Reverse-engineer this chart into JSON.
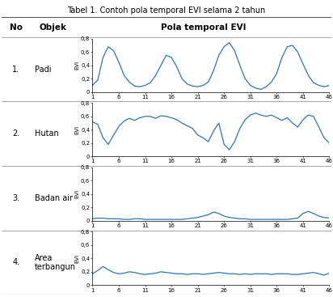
{
  "title": "Tabel 1. Contoh pola temporal EVI selama 2 tahun",
  "col_headers": [
    "No",
    "Objek",
    "Pola temporal EVI"
  ],
  "rows": [
    {
      "no": "1.",
      "objek": "Padi"
    },
    {
      "no": "2.",
      "objek": "Hutan"
    },
    {
      "no": "3.",
      "objek": "Badan air"
    },
    {
      "no": "4.",
      "objek": "Area\nterbangun"
    }
  ],
  "line_color": "#2E75B6",
  "line_width": 0.9,
  "x_ticks": [
    1,
    6,
    11,
    16,
    21,
    26,
    31,
    36,
    41,
    46
  ],
  "ylim": [
    0,
    0.8
  ],
  "yticks": [
    0,
    0.2,
    0.4,
    0.6,
    0.8
  ],
  "ylabel": "EVI",
  "padi_evi": [
    0.1,
    0.18,
    0.52,
    0.68,
    0.62,
    0.45,
    0.25,
    0.15,
    0.09,
    0.08,
    0.1,
    0.14,
    0.25,
    0.4,
    0.55,
    0.52,
    0.38,
    0.2,
    0.12,
    0.09,
    0.08,
    0.1,
    0.15,
    0.32,
    0.55,
    0.68,
    0.74,
    0.62,
    0.4,
    0.2,
    0.1,
    0.06,
    0.04,
    0.08,
    0.15,
    0.28,
    0.52,
    0.68,
    0.7,
    0.6,
    0.42,
    0.25,
    0.14,
    0.1,
    0.08,
    0.1
  ],
  "hutan_evi": [
    0.52,
    0.48,
    0.28,
    0.18,
    0.32,
    0.45,
    0.53,
    0.57,
    0.54,
    0.58,
    0.6,
    0.6,
    0.57,
    0.61,
    0.6,
    0.58,
    0.55,
    0.5,
    0.46,
    0.42,
    0.32,
    0.28,
    0.22,
    0.38,
    0.5,
    0.18,
    0.1,
    0.22,
    0.42,
    0.55,
    0.62,
    0.65,
    0.62,
    0.6,
    0.62,
    0.58,
    0.54,
    0.58,
    0.5,
    0.44,
    0.55,
    0.62,
    0.6,
    0.44,
    0.28,
    0.2
  ],
  "badan_air_evi": [
    0.03,
    0.04,
    0.04,
    0.03,
    0.03,
    0.03,
    0.02,
    0.02,
    0.03,
    0.03,
    0.02,
    0.02,
    0.02,
    0.02,
    0.02,
    0.02,
    0.02,
    0.02,
    0.03,
    0.04,
    0.05,
    0.07,
    0.09,
    0.13,
    0.11,
    0.07,
    0.05,
    0.04,
    0.03,
    0.03,
    0.02,
    0.02,
    0.02,
    0.02,
    0.02,
    0.02,
    0.02,
    0.02,
    0.03,
    0.04,
    0.11,
    0.14,
    0.11,
    0.07,
    0.05,
    0.04
  ],
  "area_evi": [
    0.17,
    0.22,
    0.28,
    0.23,
    0.19,
    0.17,
    0.18,
    0.2,
    0.19,
    0.17,
    0.16,
    0.17,
    0.18,
    0.2,
    0.19,
    0.18,
    0.17,
    0.17,
    0.16,
    0.17,
    0.17,
    0.16,
    0.17,
    0.18,
    0.19,
    0.18,
    0.17,
    0.17,
    0.16,
    0.17,
    0.16,
    0.17,
    0.17,
    0.17,
    0.16,
    0.17,
    0.17,
    0.17,
    0.16,
    0.16,
    0.17,
    0.18,
    0.19,
    0.17,
    0.15,
    0.18
  ],
  "bg_color": "#FFFFFF",
  "tick_fontsize": 5.0,
  "ylabel_fontsize": 5.0,
  "ytick_labels": [
    "0",
    "0,2",
    "0,4",
    "0,6",
    "0,8"
  ],
  "title_fontsize": 7.0,
  "header_fontsize": 7.5,
  "cell_fontsize": 7.0,
  "line_color_table": "#999999",
  "line_color_title": "#555555"
}
